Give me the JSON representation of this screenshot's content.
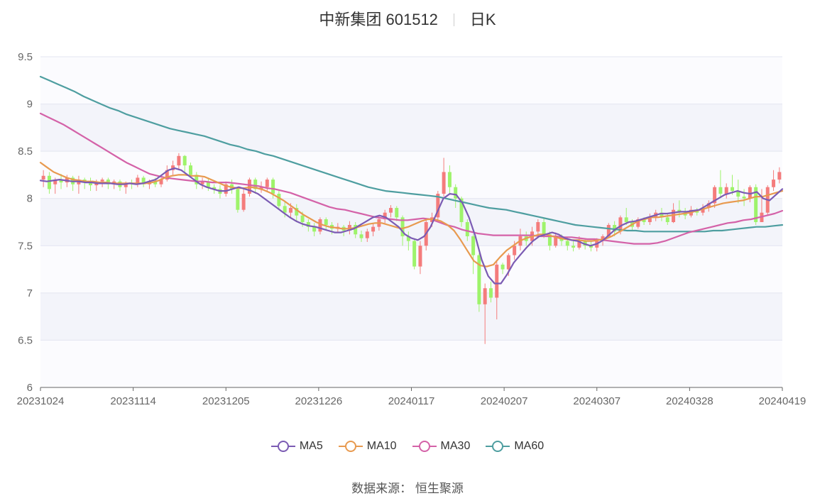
{
  "header": {
    "title": "中新集团 601512",
    "period": "日K"
  },
  "footer": {
    "source": "数据来源： 恒生聚源"
  },
  "chart_data": {
    "type": "candlestick",
    "yticks": [
      "9.5",
      "9",
      "8.5",
      "8",
      "7.5",
      "7",
      "6.5",
      "6"
    ],
    "ylim": [
      6,
      9.5
    ],
    "xticks": [
      "20231024",
      "20231114",
      "20231205",
      "20231226",
      "20240117",
      "20240207",
      "20240307",
      "20240328",
      "20240419"
    ],
    "colors": {
      "up": "#f47c7c",
      "down": "#9ef36b",
      "ma5": "#7b5bb3",
      "ma10": "#e89a4f",
      "ma30": "#d462a8",
      "ma60": "#4e9ea0"
    },
    "series": [
      {
        "name": "MA5",
        "color": "#7b5bb3"
      },
      {
        "name": "MA10",
        "color": "#e89a4f"
      },
      {
        "name": "MA30",
        "color": "#d462a8"
      },
      {
        "name": "MA60",
        "color": "#4e9ea0"
      }
    ],
    "candles": [
      [
        8.2,
        8.24,
        8.3,
        8.12
      ],
      [
        8.24,
        8.1,
        8.28,
        8.05
      ],
      [
        8.15,
        8.2,
        8.22,
        8.05
      ],
      [
        8.2,
        8.17,
        8.26,
        8.1
      ],
      [
        8.17,
        8.22,
        8.25,
        8.12
      ],
      [
        8.22,
        8.15,
        8.24,
        8.08
      ],
      [
        8.15,
        8.2,
        8.24,
        8.05
      ],
      [
        8.2,
        8.18,
        8.22,
        8.1
      ],
      [
        8.18,
        8.14,
        8.22,
        8.08
      ],
      [
        8.14,
        8.18,
        8.2,
        8.08
      ],
      [
        8.18,
        8.2,
        8.22,
        8.12
      ],
      [
        8.2,
        8.15,
        8.22,
        8.1
      ],
      [
        8.15,
        8.18,
        8.2,
        8.1
      ],
      [
        8.18,
        8.12,
        8.2,
        8.08
      ],
      [
        8.12,
        8.16,
        8.18,
        8.05
      ],
      [
        8.16,
        8.15,
        8.2,
        8.1
      ],
      [
        8.15,
        8.22,
        8.25,
        8.12
      ],
      [
        8.22,
        8.15,
        8.24,
        8.12
      ],
      [
        8.15,
        8.18,
        8.2,
        8.1
      ],
      [
        8.18,
        8.15,
        8.22,
        8.12
      ],
      [
        8.15,
        8.2,
        8.22,
        8.12
      ],
      [
        8.2,
        8.3,
        8.35,
        8.18
      ],
      [
        8.3,
        8.35,
        8.4,
        8.25
      ],
      [
        8.35,
        8.45,
        8.48,
        8.3
      ],
      [
        8.45,
        8.35,
        8.46,
        8.28
      ],
      [
        8.35,
        8.25,
        8.38,
        8.22
      ],
      [
        8.25,
        8.15,
        8.28,
        8.1
      ],
      [
        8.15,
        8.18,
        8.22,
        8.1
      ],
      [
        8.18,
        8.12,
        8.22,
        8.08
      ],
      [
        8.12,
        8.1,
        8.15,
        8.05
      ],
      [
        8.1,
        8.05,
        8.14,
        8.0
      ],
      [
        8.05,
        8.15,
        8.18,
        8.02
      ],
      [
        8.15,
        8.1,
        8.2,
        8.05
      ],
      [
        8.1,
        7.88,
        8.12,
        7.85
      ],
      [
        7.88,
        8.05,
        8.1,
        7.86
      ],
      [
        8.05,
        8.2,
        8.22,
        8.02
      ],
      [
        8.2,
        8.1,
        8.22,
        8.05
      ],
      [
        8.1,
        8.12,
        8.18,
        8.06
      ],
      [
        8.12,
        8.2,
        8.22,
        8.08
      ],
      [
        8.2,
        8.05,
        8.22,
        8.0
      ],
      [
        8.05,
        7.92,
        8.08,
        7.88
      ],
      [
        7.92,
        7.85,
        7.96,
        7.8
      ],
      [
        7.85,
        7.9,
        7.95,
        7.8
      ],
      [
        7.9,
        7.82,
        7.94,
        7.75
      ],
      [
        7.82,
        7.75,
        7.86,
        7.7
      ],
      [
        7.75,
        7.7,
        7.78,
        7.65
      ],
      [
        7.7,
        7.65,
        7.74,
        7.6
      ],
      [
        7.65,
        7.78,
        7.8,
        7.62
      ],
      [
        7.78,
        7.72,
        7.8,
        7.66
      ],
      [
        7.72,
        7.68,
        7.75,
        7.62
      ],
      [
        7.68,
        7.7,
        7.74,
        7.64
      ],
      [
        7.7,
        7.66,
        7.72,
        7.6
      ],
      [
        7.66,
        7.72,
        7.76,
        7.62
      ],
      [
        7.72,
        7.62,
        7.75,
        7.58
      ],
      [
        7.62,
        7.58,
        7.66,
        7.54
      ],
      [
        7.58,
        7.65,
        7.68,
        7.54
      ],
      [
        7.65,
        7.7,
        7.74,
        7.6
      ],
      [
        7.7,
        7.78,
        7.82,
        7.66
      ],
      [
        7.78,
        7.85,
        7.88,
        7.74
      ],
      [
        7.85,
        7.9,
        7.93,
        7.8
      ],
      [
        7.9,
        7.8,
        7.92,
        7.76
      ],
      [
        7.8,
        7.6,
        7.82,
        7.5
      ],
      [
        7.6,
        7.55,
        7.65,
        7.45
      ],
      [
        7.55,
        7.28,
        7.58,
        7.25
      ],
      [
        7.28,
        7.5,
        7.55,
        7.2
      ],
      [
        7.5,
        7.75,
        7.78,
        7.45
      ],
      [
        7.75,
        7.8,
        7.85,
        7.7
      ],
      [
        7.8,
        8.05,
        8.08,
        7.76
      ],
      [
        8.05,
        8.28,
        8.43,
        8.02
      ],
      [
        8.28,
        8.12,
        8.35,
        8.05
      ],
      [
        8.12,
        8.0,
        8.15,
        7.9
      ],
      [
        8.0,
        7.75,
        8.02,
        7.7
      ],
      [
        7.75,
        7.6,
        7.78,
        7.55
      ],
      [
        7.6,
        7.4,
        7.62,
        7.2
      ],
      [
        7.4,
        6.88,
        7.42,
        6.8
      ],
      [
        6.88,
        7.05,
        7.1,
        6.46
      ],
      [
        7.05,
        6.95,
        7.12,
        6.9
      ],
      [
        6.95,
        7.3,
        7.35,
        6.72
      ],
      [
        7.3,
        7.25,
        7.32,
        7.2
      ],
      [
        7.25,
        7.4,
        7.42,
        7.18
      ],
      [
        7.4,
        7.5,
        7.55,
        7.35
      ],
      [
        7.5,
        7.6,
        7.68,
        7.45
      ],
      [
        7.6,
        7.55,
        7.65,
        7.5
      ],
      [
        7.55,
        7.65,
        7.7,
        7.5
      ],
      [
        7.65,
        7.75,
        7.78,
        7.6
      ],
      [
        7.75,
        7.62,
        7.8,
        7.58
      ],
      [
        7.62,
        7.5,
        7.65,
        7.45
      ],
      [
        7.5,
        7.6,
        7.64,
        7.48
      ],
      [
        7.6,
        7.55,
        7.62,
        7.5
      ],
      [
        7.55,
        7.5,
        7.58,
        7.45
      ],
      [
        7.5,
        7.48,
        7.55,
        7.44
      ],
      [
        7.48,
        7.55,
        7.6,
        7.46
      ],
      [
        7.55,
        7.5,
        7.58,
        7.46
      ],
      [
        7.5,
        7.48,
        7.56,
        7.44
      ],
      [
        7.48,
        7.55,
        7.58,
        7.44
      ],
      [
        7.55,
        7.6,
        7.62,
        7.5
      ],
      [
        7.6,
        7.72,
        7.74,
        7.58
      ],
      [
        7.72,
        7.65,
        7.76,
        7.6
      ],
      [
        7.65,
        7.8,
        7.82,
        7.62
      ],
      [
        7.8,
        7.75,
        7.9,
        7.72
      ],
      [
        7.75,
        7.7,
        7.78,
        7.66
      ],
      [
        7.7,
        7.78,
        7.8,
        7.68
      ],
      [
        7.78,
        7.75,
        7.8,
        7.72
      ],
      [
        7.75,
        7.8,
        7.84,
        7.72
      ],
      [
        7.8,
        7.85,
        7.88,
        7.76
      ],
      [
        7.85,
        7.8,
        7.9,
        7.76
      ],
      [
        7.8,
        7.75,
        7.84,
        7.72
      ],
      [
        7.75,
        7.88,
        7.95,
        7.74
      ],
      [
        7.88,
        7.85,
        7.98,
        7.8
      ],
      [
        7.85,
        7.82,
        7.9,
        7.78
      ],
      [
        7.82,
        7.88,
        7.92,
        7.8
      ],
      [
        7.88,
        7.85,
        7.9,
        7.82
      ],
      [
        7.85,
        7.9,
        7.94,
        7.82
      ],
      [
        7.9,
        7.95,
        7.98,
        7.86
      ],
      [
        7.95,
        8.12,
        8.14,
        7.9
      ],
      [
        8.12,
        8.05,
        8.3,
        8.02
      ],
      [
        8.05,
        8.12,
        8.16,
        8.0
      ],
      [
        8.12,
        8.08,
        8.25,
        8.04
      ],
      [
        8.08,
        8.02,
        8.2,
        7.95
      ],
      [
        8.02,
        8.0,
        8.1,
        7.92
      ],
      [
        8.0,
        8.12,
        8.14,
        7.96
      ],
      [
        8.12,
        7.75,
        8.15,
        7.72
      ],
      [
        7.75,
        7.85,
        8.1,
        7.8
      ],
      [
        7.85,
        8.12,
        8.14,
        7.82
      ],
      [
        8.12,
        8.2,
        8.3,
        8.08
      ],
      [
        8.2,
        8.28,
        8.33,
        8.16
      ]
    ],
    "ma5": [
      8.19,
      8.18,
      8.19,
      8.2,
      8.19,
      8.18,
      8.18,
      8.17,
      8.17,
      8.16,
      8.16,
      8.16,
      8.15,
      8.15,
      8.16,
      8.15,
      8.16,
      8.18,
      8.2,
      8.25,
      8.3,
      8.32,
      8.3,
      8.25,
      8.2,
      8.15,
      8.12,
      8.1,
      8.08,
      8.08,
      8.1,
      8.12,
      8.1,
      8.08,
      8.05,
      8.0,
      7.95,
      7.9,
      7.85,
      7.8,
      7.76,
      7.73,
      7.71,
      7.7,
      7.68,
      7.66,
      7.64,
      7.64,
      7.66,
      7.68,
      7.72,
      7.76,
      7.8,
      7.82,
      7.8,
      7.75,
      7.7,
      7.62,
      7.58,
      7.56,
      7.6,
      7.7,
      7.85,
      8.0,
      8.05,
      8.04,
      7.95,
      7.8,
      7.6,
      7.35,
      7.18,
      7.1,
      7.1,
      7.2,
      7.32,
      7.4,
      7.48,
      7.55,
      7.6,
      7.62,
      7.64,
      7.62,
      7.58,
      7.56,
      7.55,
      7.52,
      7.5,
      7.52,
      7.56,
      7.62,
      7.68,
      7.72,
      7.75,
      7.76,
      7.78,
      7.8,
      7.82,
      7.84,
      7.84,
      7.85,
      7.86,
      7.86,
      7.87,
      7.88,
      7.92,
      7.96,
      8.0,
      8.04,
      8.06,
      8.08,
      8.06,
      8.05,
      8.07,
      8.0,
      7.98,
      8.04,
      8.1
    ],
    "ma10": [
      8.38,
      8.33,
      8.28,
      8.25,
      8.22,
      8.2,
      8.19,
      8.18,
      8.18,
      8.17,
      8.17,
      8.16,
      8.16,
      8.16,
      8.16,
      8.16,
      8.16,
      8.17,
      8.19,
      8.22,
      8.24,
      8.25,
      8.25,
      8.24,
      8.24,
      8.23,
      8.2,
      8.17,
      8.14,
      8.12,
      8.11,
      8.11,
      8.12,
      8.11,
      8.09,
      8.06,
      8.02,
      7.98,
      7.93,
      7.88,
      7.83,
      7.79,
      7.75,
      7.72,
      7.7,
      7.69,
      7.68,
      7.68,
      7.69,
      7.71,
      7.73,
      7.74,
      7.74,
      7.72,
      7.7,
      7.68,
      7.7,
      7.73,
      7.76,
      7.78,
      7.78,
      7.76,
      7.72,
      7.66,
      7.56,
      7.45,
      7.34,
      7.29,
      7.28,
      7.3,
      7.38,
      7.45,
      7.5,
      7.55,
      7.58,
      7.6,
      7.62,
      7.62,
      7.6,
      7.58,
      7.57,
      7.56,
      7.56,
      7.55,
      7.55,
      7.56,
      7.57,
      7.6,
      7.64,
      7.68,
      7.72,
      7.76,
      7.78,
      7.8,
      7.8,
      7.81,
      7.82,
      7.83,
      7.84,
      7.85,
      7.87,
      7.89,
      7.91,
      7.93,
      7.95,
      7.96,
      7.97,
      7.98,
      8.0,
      8.02,
      8.02,
      8.04,
      8.06,
      8.08
    ],
    "ma30": [
      8.9,
      8.86,
      8.82,
      8.78,
      8.73,
      8.68,
      8.63,
      8.58,
      8.53,
      8.48,
      8.43,
      8.38,
      8.34,
      8.3,
      8.26,
      8.24,
      8.22,
      8.21,
      8.2,
      8.19,
      8.18,
      8.18,
      8.17,
      8.17,
      8.17,
      8.16,
      8.15,
      8.14,
      8.13,
      8.11,
      8.1,
      8.08,
      8.06,
      8.03,
      8.0,
      7.97,
      7.94,
      7.91,
      7.89,
      7.88,
      7.86,
      7.84,
      7.82,
      7.8,
      7.79,
      7.78,
      7.77,
      7.77,
      7.78,
      7.79,
      7.78,
      7.75,
      7.72,
      7.7,
      7.67,
      7.65,
      7.63,
      7.62,
      7.61,
      7.61,
      7.61,
      7.61,
      7.61,
      7.61,
      7.6,
      7.6,
      7.6,
      7.59,
      7.59,
      7.58,
      7.57,
      7.57,
      7.56,
      7.55,
      7.54,
      7.53,
      7.52,
      7.52,
      7.52,
      7.53,
      7.55,
      7.58,
      7.61,
      7.64,
      7.66,
      7.68,
      7.7,
      7.72,
      7.74,
      7.75,
      7.77,
      7.78,
      7.8,
      7.82,
      7.84,
      7.87
    ],
    "ma60": [
      9.29,
      9.25,
      9.21,
      9.17,
      9.13,
      9.08,
      9.04,
      9.0,
      8.96,
      8.93,
      8.89,
      8.86,
      8.83,
      8.8,
      8.77,
      8.74,
      8.72,
      8.7,
      8.68,
      8.66,
      8.63,
      8.6,
      8.57,
      8.55,
      8.52,
      8.5,
      8.47,
      8.45,
      8.42,
      8.39,
      8.36,
      8.33,
      8.3,
      8.27,
      8.24,
      8.21,
      8.18,
      8.15,
      8.12,
      8.1,
      8.08,
      8.07,
      8.06,
      8.05,
      8.04,
      8.03,
      8.02,
      8.0,
      7.98,
      7.96,
      7.94,
      7.92,
      7.9,
      7.89,
      7.88,
      7.86,
      7.84,
      7.82,
      7.8,
      7.78,
      7.76,
      7.74,
      7.72,
      7.71,
      7.7,
      7.69,
      7.68,
      7.67,
      7.66,
      7.66,
      7.65,
      7.65,
      7.65,
      7.65,
      7.65,
      7.65,
      7.65,
      7.65,
      7.66,
      7.66,
      7.67,
      7.68,
      7.69,
      7.7,
      7.7,
      7.71,
      7.72
    ]
  }
}
